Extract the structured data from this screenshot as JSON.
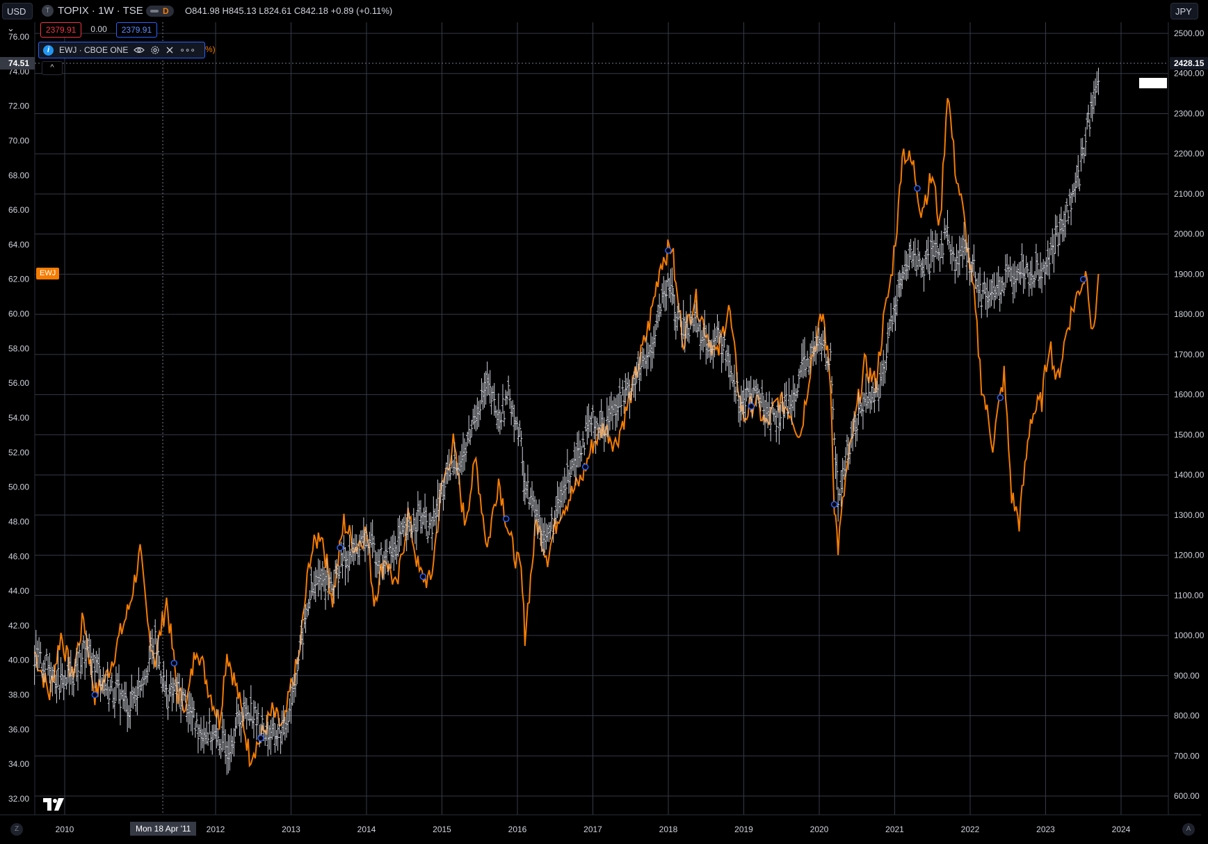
{
  "header": {
    "currency_left": "USD",
    "currency_chevron": "⌄",
    "symbol_logo_letter": "T",
    "symbol_title": "TOPIX · 1W · TSE",
    "status_letter": "D",
    "ohlc": "O841.98  H845.13  L824.61  C842.18  +0.89 (+0.11%)"
  },
  "price_boxes": {
    "bid": "2379.91",
    "spread": "0.00",
    "ask": "2379.91"
  },
  "legend": {
    "info_letter": "i",
    "label": "EWJ · CBOE ONE",
    "more": "∘∘∘",
    "tail": "%)",
    "collapse": "^"
  },
  "crosshair": {
    "left_price": "74.51",
    "right_price": "2428.15",
    "time_label": "Mon 18 Apr '11"
  },
  "currency_right": "JPY",
  "ewj_tag": "EWJ",
  "footer": {
    "left_btn": "Z",
    "right_btn": "A"
  },
  "colors": {
    "ewj": "#f57c00",
    "topix": "#d1d4dc",
    "grid": "#363a45",
    "bg": "#000000",
    "marker": "#2962ff"
  },
  "chart_data": {
    "type": "line",
    "title": "TOPIX · 1W · TSE",
    "xlabel": "",
    "ylabel": "",
    "grid": true,
    "x_ticks": [
      "2010",
      "2012",
      "2013",
      "2014",
      "2015",
      "2016",
      "2017",
      "2018",
      "2019",
      "2020",
      "2021",
      "2022",
      "2023",
      "2024"
    ],
    "left_axis": {
      "unit": "USD",
      "range": [
        31,
        77
      ],
      "ticks": [
        "76.00",
        "74.00",
        "72.00",
        "70.00",
        "68.00",
        "66.00",
        "64.00",
        "62.00",
        "60.00",
        "58.00",
        "56.00",
        "54.00",
        "52.00",
        "50.00",
        "48.00",
        "46.00",
        "44.00",
        "42.00",
        "40.00",
        "38.00",
        "36.00",
        "34.00",
        "32.00"
      ]
    },
    "right_axis": {
      "unit": "JPY",
      "range": [
        570,
        2505
      ],
      "ticks": [
        "2500.00",
        "2400.00",
        "2300.00",
        "2200.00",
        "2100.00",
        "2000.00",
        "1900.00",
        "1800.00",
        "1700.00",
        "1600.00",
        "1500.00",
        "1400.00",
        "1300.00",
        "1200.00",
        "1100.00",
        "1000.00",
        "900.00",
        "800.00",
        "700.00",
        "600.00"
      ]
    },
    "series": [
      {
        "name": "EWJ",
        "axis": "left",
        "x": [
          2009.6,
          2009.8,
          2009.95,
          2010.1,
          2010.25,
          2010.4,
          2010.55,
          2010.7,
          2010.85,
          2011.0,
          2011.1,
          2011.2,
          2011.35,
          2011.5,
          2011.62,
          2011.75,
          2011.9,
          2012.05,
          2012.15,
          2012.3,
          2012.45,
          2012.6,
          2012.75,
          2012.9,
          2013.0,
          2013.1,
          2013.25,
          2013.4,
          2013.55,
          2013.7,
          2013.85,
          2014.0,
          2014.1,
          2014.25,
          2014.4,
          2014.55,
          2014.7,
          2014.85,
          2015.0,
          2015.15,
          2015.3,
          2015.45,
          2015.6,
          2015.75,
          2015.9,
          2016.05,
          2016.1,
          2016.25,
          2016.4,
          2016.55,
          2016.7,
          2016.85,
          2017.0,
          2017.15,
          2017.3,
          2017.45,
          2017.6,
          2017.75,
          2017.9,
          2018.05,
          2018.1,
          2018.2,
          2018.35,
          2018.5,
          2018.65,
          2018.8,
          2018.95,
          2019.0,
          2019.15,
          2019.3,
          2019.45,
          2019.6,
          2019.75,
          2019.9,
          2020.05,
          2020.15,
          2020.2,
          2020.25,
          2020.35,
          2020.5,
          2020.6,
          2020.75,
          2020.85,
          2020.95,
          2021.05,
          2021.1,
          2021.25,
          2021.35,
          2021.5,
          2021.6,
          2021.7,
          2021.8,
          2021.9,
          2022.05,
          2022.15,
          2022.3,
          2022.45,
          2022.55,
          2022.65,
          2022.8,
          2022.95,
          2023.05,
          2023.15,
          2023.3,
          2023.45,
          2023.55,
          2023.62,
          2023.7
        ],
        "y": [
          40.5,
          38.0,
          41.5,
          39.0,
          42.5,
          38.0,
          39.0,
          41.0,
          43.0,
          46.2,
          42.0,
          40.0,
          43.5,
          38.0,
          37.5,
          41.0,
          38.5,
          36.5,
          40.5,
          38.0,
          34.5,
          35.5,
          37.0,
          36.0,
          38.5,
          40.0,
          46.0,
          47.5,
          43.5,
          48.0,
          46.5,
          47.5,
          43.5,
          46.0,
          44.0,
          48.5,
          45.0,
          44.5,
          50.0,
          52.5,
          48.0,
          51.5,
          46.5,
          50.5,
          47.0,
          45.0,
          41.5,
          48.0,
          46.0,
          48.5,
          49.5,
          50.5,
          52.5,
          53.5,
          52.5,
          54.5,
          57.0,
          59.5,
          63.0,
          64.0,
          61.5,
          58.5,
          61.0,
          59.0,
          57.5,
          60.5,
          55.0,
          54.0,
          55.0,
          53.5,
          55.0,
          54.5,
          53.0,
          57.5,
          60.0,
          56.0,
          49.0,
          46.5,
          50.5,
          54.5,
          57.0,
          56.0,
          59.5,
          62.0,
          66.0,
          69.5,
          68.5,
          66.0,
          68.0,
          65.0,
          73.0,
          68.5,
          66.0,
          61.0,
          56.0,
          52.5,
          56.5,
          49.5,
          48.0,
          54.0,
          55.0,
          58.5,
          56.0,
          59.5,
          61.5,
          62.5,
          58.5,
          62.0
        ]
      },
      {
        "name": "TOPIX",
        "axis": "right",
        "x": [
          2009.6,
          2009.8,
          2009.95,
          2010.1,
          2010.25,
          2010.4,
          2010.55,
          2010.7,
          2010.85,
          2011.0,
          2011.1,
          2011.2,
          2011.35,
          2011.5,
          2011.62,
          2011.75,
          2011.9,
          2012.05,
          2012.15,
          2012.3,
          2012.45,
          2012.6,
          2012.75,
          2012.9,
          2013.0,
          2013.1,
          2013.25,
          2013.4,
          2013.55,
          2013.7,
          2013.85,
          2014.0,
          2014.1,
          2014.25,
          2014.4,
          2014.55,
          2014.7,
          2014.85,
          2015.0,
          2015.15,
          2015.3,
          2015.45,
          2015.6,
          2015.75,
          2015.9,
          2016.05,
          2016.1,
          2016.25,
          2016.4,
          2016.55,
          2016.7,
          2016.85,
          2017.0,
          2017.15,
          2017.3,
          2017.45,
          2017.6,
          2017.75,
          2017.9,
          2018.05,
          2018.1,
          2018.2,
          2018.35,
          2018.5,
          2018.65,
          2018.8,
          2018.95,
          2019.0,
          2019.15,
          2019.3,
          2019.45,
          2019.6,
          2019.75,
          2019.9,
          2020.05,
          2020.15,
          2020.2,
          2020.25,
          2020.35,
          2020.5,
          2020.6,
          2020.75,
          2020.85,
          2020.95,
          2021.05,
          2021.1,
          2021.25,
          2021.35,
          2021.5,
          2021.6,
          2021.7,
          2021.8,
          2021.9,
          2022.05,
          2022.15,
          2022.3,
          2022.45,
          2022.55,
          2022.65,
          2022.8,
          2022.95,
          2023.05,
          2023.15,
          2023.3,
          2023.45,
          2023.55,
          2023.62,
          2023.7
        ],
        "y": [
          940,
          920,
          880,
          900,
          960,
          930,
          870,
          860,
          820,
          880,
          930,
          980,
          850,
          860,
          830,
          770,
          760,
          740,
          720,
          790,
          820,
          770,
          750,
          760,
          840,
          940,
          1100,
          1150,
          1130,
          1190,
          1210,
          1240,
          1210,
          1180,
          1230,
          1260,
          1300,
          1260,
          1360,
          1420,
          1450,
          1560,
          1620,
          1540,
          1600,
          1470,
          1380,
          1300,
          1240,
          1320,
          1420,
          1480,
          1530,
          1520,
          1580,
          1600,
          1650,
          1700,
          1820,
          1880,
          1790,
          1760,
          1790,
          1730,
          1740,
          1690,
          1580,
          1580,
          1610,
          1560,
          1540,
          1580,
          1650,
          1700,
          1730,
          1680,
          1500,
          1330,
          1440,
          1540,
          1590,
          1600,
          1650,
          1780,
          1860,
          1880,
          1960,
          1900,
          1940,
          1960,
          2010,
          1920,
          1960,
          1920,
          1850,
          1860,
          1880,
          1900,
          1920,
          1900,
          1920,
          1940,
          1990,
          2060,
          2150,
          2270,
          2310,
          2400
        ]
      }
    ],
    "markers_on_ewj_x": [
      2010.4,
      2011.45,
      2012.6,
      2013.65,
      2014.75,
      2015.85,
      2016.9,
      2018.0,
      2019.1,
      2020.2,
      2021.3,
      2022.4,
      2023.5
    ]
  }
}
